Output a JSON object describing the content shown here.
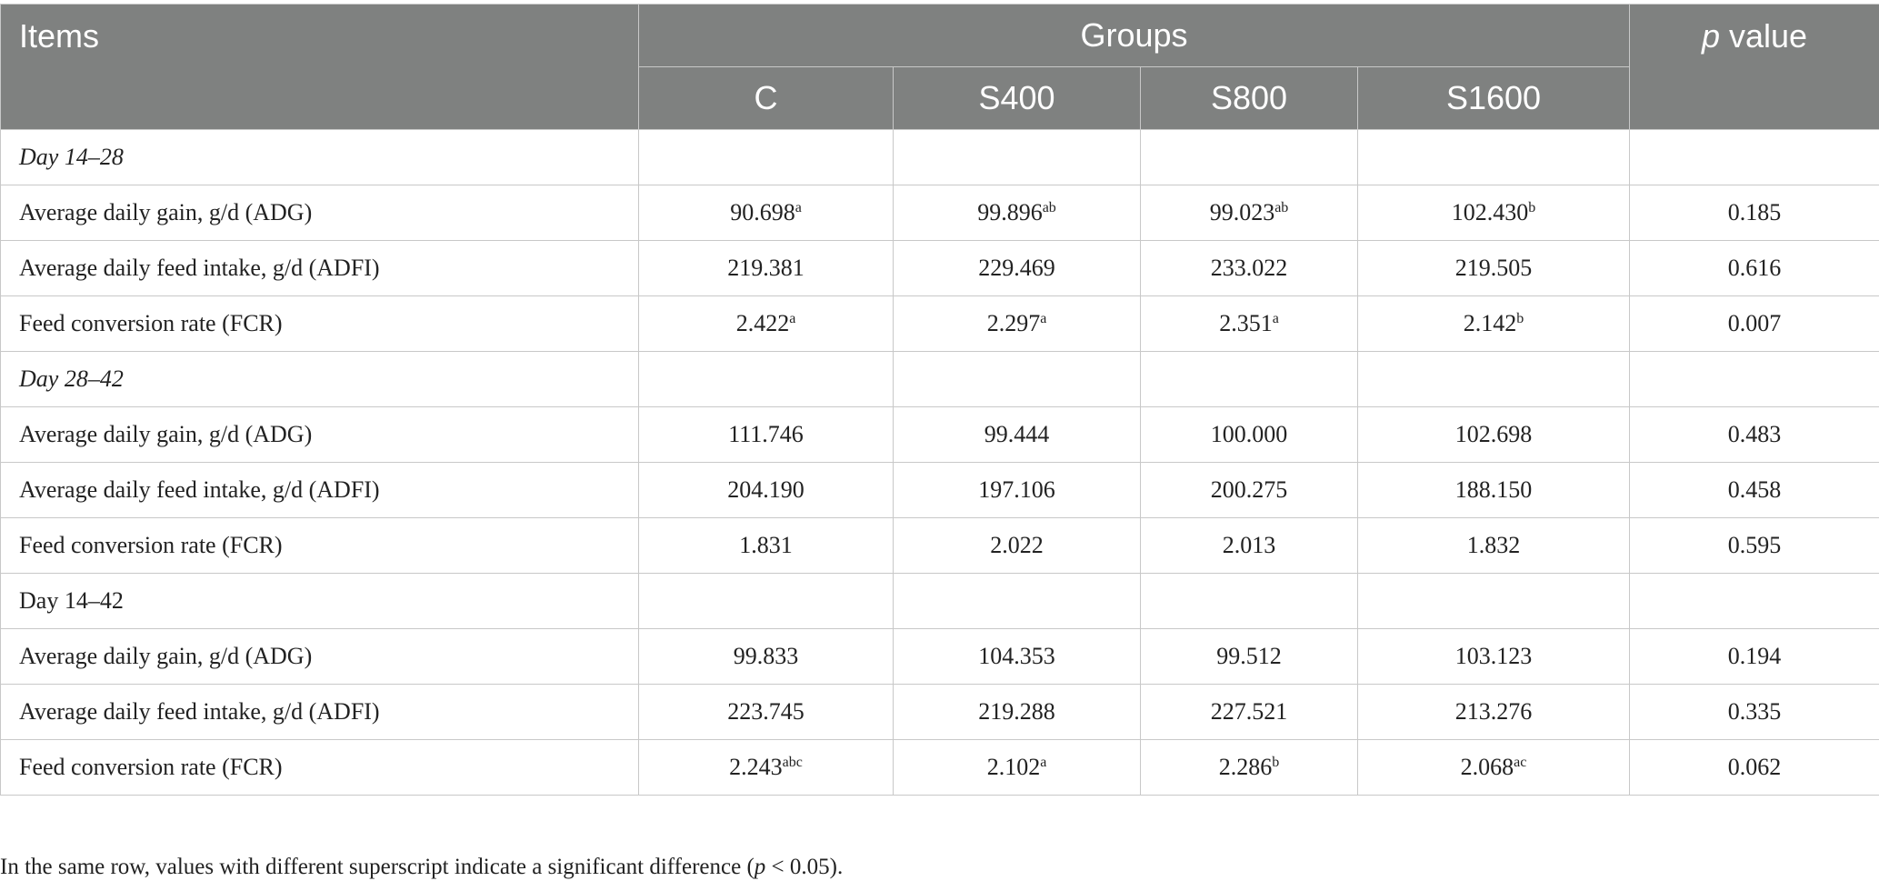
{
  "table": {
    "header": {
      "items": "Items",
      "groups": "Groups",
      "p_label": "p",
      "p_suffix": " value",
      "columns": [
        "C",
        "S400",
        "S800",
        "S1600"
      ]
    },
    "rows": [
      {
        "type": "section",
        "label": "Day 14–28",
        "italic": true
      },
      {
        "type": "data",
        "label": "Average daily gain, g/d (ADG)",
        "cells": [
          {
            "v": "90.698",
            "sup": "a"
          },
          {
            "v": "99.896",
            "sup": "ab"
          },
          {
            "v": "99.023",
            "sup": "ab"
          },
          {
            "v": "102.430",
            "sup": "b"
          }
        ],
        "p": "0.185"
      },
      {
        "type": "data",
        "label": "Average daily feed intake, g/d (ADFI)",
        "cells": [
          {
            "v": "219.381",
            "sup": ""
          },
          {
            "v": "229.469",
            "sup": ""
          },
          {
            "v": "233.022",
            "sup": ""
          },
          {
            "v": "219.505",
            "sup": ""
          }
        ],
        "p": "0.616"
      },
      {
        "type": "data",
        "label": "Feed conversion rate (FCR)",
        "cells": [
          {
            "v": "2.422",
            "sup": "a"
          },
          {
            "v": "2.297",
            "sup": "a"
          },
          {
            "v": "2.351",
            "sup": "a"
          },
          {
            "v": "2.142",
            "sup": "b"
          }
        ],
        "p": "0.007"
      },
      {
        "type": "section",
        "label": "Day 28–42",
        "italic": true
      },
      {
        "type": "data",
        "label": "Average daily gain, g/d (ADG)",
        "cells": [
          {
            "v": "111.746",
            "sup": ""
          },
          {
            "v": "99.444",
            "sup": ""
          },
          {
            "v": "100.000",
            "sup": ""
          },
          {
            "v": "102.698",
            "sup": ""
          }
        ],
        "p": "0.483"
      },
      {
        "type": "data",
        "label": "Average daily feed intake, g/d (ADFI)",
        "cells": [
          {
            "v": "204.190",
            "sup": ""
          },
          {
            "v": "197.106",
            "sup": ""
          },
          {
            "v": "200.275",
            "sup": ""
          },
          {
            "v": "188.150",
            "sup": ""
          }
        ],
        "p": "0.458"
      },
      {
        "type": "data",
        "label": "Feed conversion rate (FCR)",
        "cells": [
          {
            "v": "1.831",
            "sup": ""
          },
          {
            "v": "2.022",
            "sup": ""
          },
          {
            "v": "2.013",
            "sup": ""
          },
          {
            "v": "1.832",
            "sup": ""
          }
        ],
        "p": "0.595"
      },
      {
        "type": "section",
        "label": "Day 14–42",
        "italic": false
      },
      {
        "type": "data",
        "label": "Average daily gain, g/d (ADG)",
        "cells": [
          {
            "v": "99.833",
            "sup": ""
          },
          {
            "v": "104.353",
            "sup": ""
          },
          {
            "v": "99.512",
            "sup": ""
          },
          {
            "v": "103.123",
            "sup": ""
          }
        ],
        "p": "0.194"
      },
      {
        "type": "data",
        "label": "Average daily feed intake, g/d (ADFI)",
        "cells": [
          {
            "v": "223.745",
            "sup": ""
          },
          {
            "v": "219.288",
            "sup": ""
          },
          {
            "v": "227.521",
            "sup": ""
          },
          {
            "v": "213.276",
            "sup": ""
          }
        ],
        "p": "0.335"
      },
      {
        "type": "data",
        "label": "Feed conversion rate (FCR)",
        "cells": [
          {
            "v": "2.243",
            "sup": "abc"
          },
          {
            "v": "2.102",
            "sup": "a"
          },
          {
            "v": "2.286",
            "sup": "b"
          },
          {
            "v": "2.068",
            "sup": "ac"
          }
        ],
        "p": "0.062"
      }
    ]
  },
  "footnote": {
    "before": "In the same row, values with different superscript indicate a significant difference (",
    "italic": "p",
    "after": " < 0.05)."
  }
}
